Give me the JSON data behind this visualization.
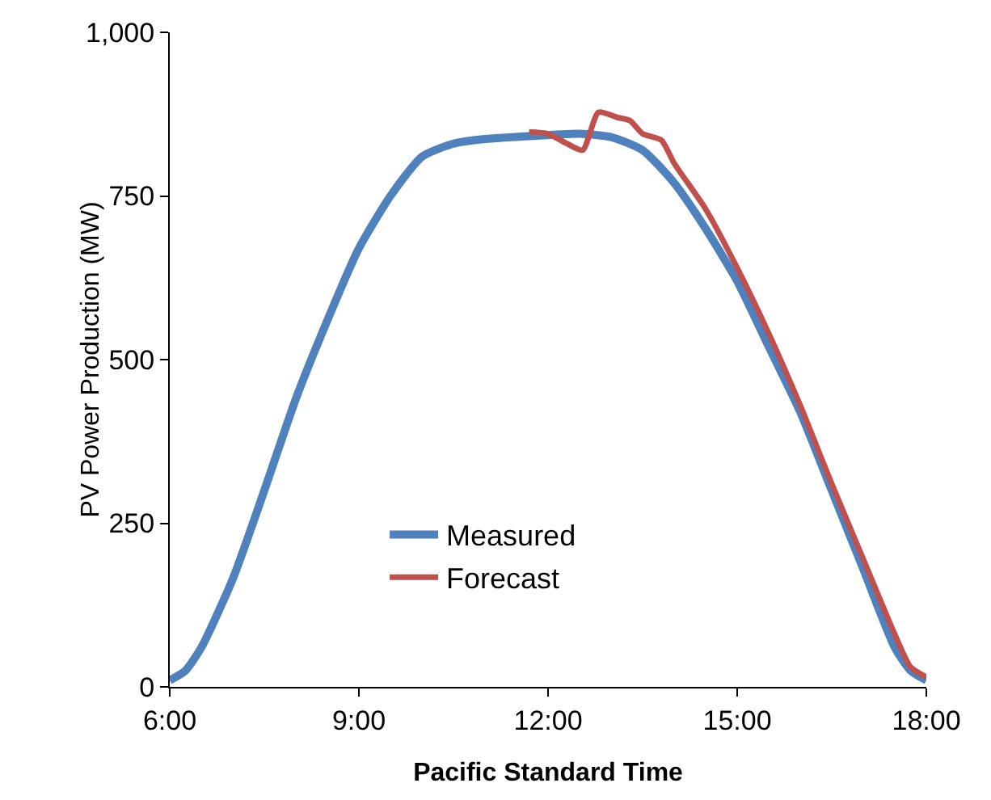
{
  "chart_data": {
    "type": "line",
    "xlabel": "Pacific Standard Time",
    "ylabel": "PV Power Production (MW)",
    "xlim": [
      6,
      18
    ],
    "ylim": [
      0,
      1000
    ],
    "xticks": [
      {
        "value": 6,
        "label": "6:00"
      },
      {
        "value": 9,
        "label": "9:00"
      },
      {
        "value": 12,
        "label": "12:00"
      },
      {
        "value": 15,
        "label": "15:00"
      },
      {
        "value": 18,
        "label": "18:00"
      }
    ],
    "yticks": [
      0,
      250,
      500,
      750,
      {
        "value": 1000,
        "label": "1,000"
      }
    ],
    "grid": false,
    "legend": "bottom",
    "marker": "none",
    "line_style": "solid",
    "series": [
      {
        "name": "Measured",
        "color": "#4f81bd",
        "x": [
          6,
          6.25,
          6.5,
          7,
          7.5,
          8,
          8.5,
          9,
          9.5,
          10,
          10.5,
          11,
          12,
          12.5,
          13,
          13.5,
          14,
          14.5,
          15,
          15.5,
          16,
          16.5,
          17,
          17.5,
          17.75,
          18
        ],
        "values": [
          10,
          25,
          60,
          165,
          300,
          440,
          560,
          670,
          750,
          810,
          830,
          837,
          843,
          845,
          840,
          820,
          770,
          700,
          620,
          520,
          420,
          300,
          180,
          60,
          25,
          10
        ]
      },
      {
        "name": "Forecast",
        "color": "#c0504d",
        "x": [
          11.7,
          12,
          12.3,
          12.55,
          12.8,
          13.1,
          13.3,
          13.5,
          13.8,
          14,
          14.5,
          15,
          15.5,
          16,
          16.5,
          17,
          17.5,
          17.75,
          18
        ],
        "values": [
          848,
          845,
          830,
          820,
          878,
          870,
          865,
          845,
          835,
          800,
          730,
          640,
          540,
          430,
          310,
          195,
          80,
          30,
          15
        ]
      }
    ]
  }
}
